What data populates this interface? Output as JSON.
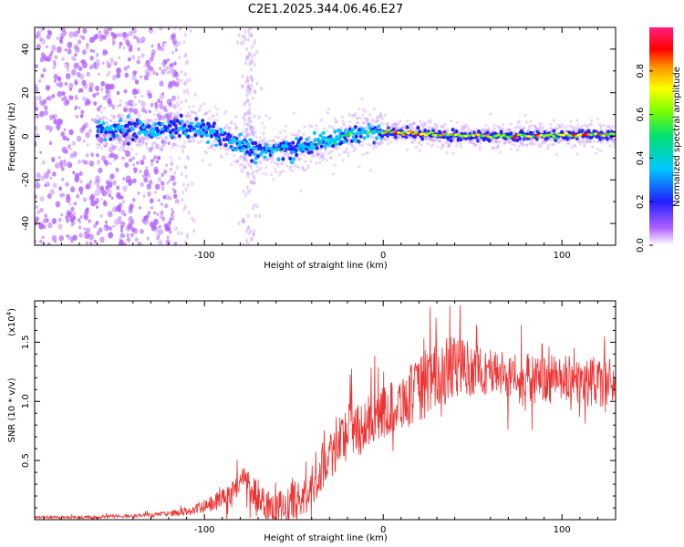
{
  "title": "C2E1.2025.344.06.46.E27",
  "colors": {
    "snr_line": "#ee3333",
    "frame": "#000000",
    "background": "#ffffff"
  },
  "chart_data": [
    {
      "type": "heatmap",
      "name": "spectrogram",
      "xlabel": "Height of straight line (km)",
      "ylabel": "Frequency (Hz)",
      "xlim": [
        -195,
        130
      ],
      "ylim": [
        -50,
        50
      ],
      "xticks": [
        -100,
        0,
        100
      ],
      "xtick_labels": [
        "-100",
        "0",
        "100"
      ],
      "yticks": [
        -40,
        -20,
        0,
        20,
        40
      ],
      "ytick_labels": [
        "-40",
        "-20",
        "0",
        "20",
        "40"
      ],
      "ridge": {
        "x": [
          -160,
          -140,
          -120,
          -100,
          -90,
          -80,
          -70,
          -60,
          -50,
          -40,
          -30,
          -20,
          -10,
          0,
          20,
          60,
          100,
          130
        ],
        "frequency": [
          3,
          3,
          4,
          3,
          0,
          -4,
          -7,
          -6,
          -6,
          -4,
          -2,
          1,
          2,
          2,
          1,
          0,
          0.5,
          1
        ]
      },
      "noise_region_x": [
        -195,
        -125
      ],
      "colorbar": {
        "label": "Normalized spectral amplitude",
        "range": [
          0.0,
          1.0
        ],
        "ticks": [
          0.0,
          0.2,
          0.4,
          0.6,
          0.8
        ],
        "tick_labels": [
          "0.0",
          "0.2",
          "0.4",
          "0.6",
          "0.8"
        ]
      }
    },
    {
      "type": "line",
      "name": "snr",
      "xlabel": "Height of straight line (km)",
      "ylabel": "SNR (10 * v/v)",
      "scale_label": "(x10",
      "scale_exponent": "4",
      "scale_close": ")",
      "xlim": [
        -195,
        130
      ],
      "ylim": [
        0,
        1.85
      ],
      "xticks": [
        -100,
        0,
        100
      ],
      "xtick_labels": [
        "-100",
        "0",
        "100"
      ],
      "yticks": [
        0.5,
        1.0,
        1.5
      ],
      "ytick_labels": [
        "0.5",
        "1.0",
        "1.5"
      ],
      "envelope": {
        "x": [
          -195,
          -160,
          -150,
          -140,
          -120,
          -105,
          -95,
          -85,
          -78,
          -70,
          -60,
          -50,
          -42,
          -38,
          -30,
          -20,
          -10,
          0,
          10,
          20,
          30,
          40,
          60,
          80,
          100,
          130
        ],
        "y": [
          0.02,
          0.02,
          0.03,
          0.03,
          0.05,
          0.08,
          0.14,
          0.22,
          0.35,
          0.2,
          0.08,
          0.15,
          0.2,
          0.35,
          0.55,
          0.75,
          0.8,
          0.9,
          1.0,
          1.1,
          1.2,
          1.3,
          1.25,
          1.2,
          1.18,
          1.15
        ]
      },
      "noise_amplitude": {
        "x": [
          -195,
          -120,
          -90,
          -70,
          -40,
          -20,
          0,
          30,
          60,
          130
        ],
        "y": [
          0.01,
          0.02,
          0.08,
          0.15,
          0.18,
          0.25,
          0.22,
          0.3,
          0.2,
          0.22
        ]
      }
    }
  ]
}
